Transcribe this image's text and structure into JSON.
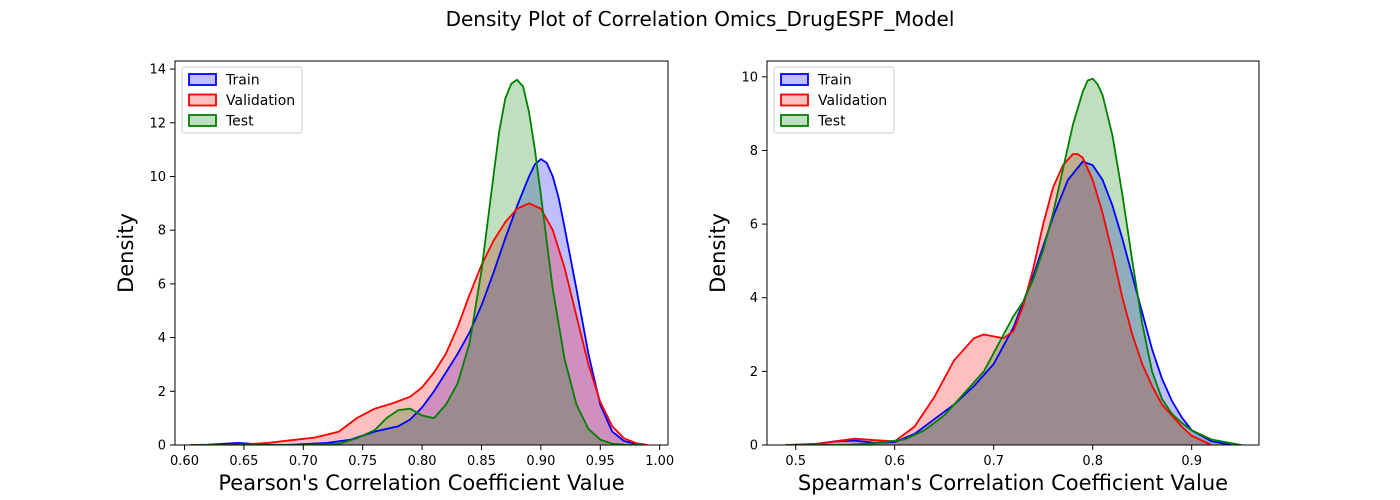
{
  "figure": {
    "title": "Density Plot of Correlation Omics_DrugESPF_Model"
  },
  "chart_data": [
    {
      "type": "area",
      "subtype": "kde-density",
      "title": "",
      "xlabel": "Pearson's Correlation Coefficient Value",
      "ylabel": "Density",
      "xlim": [
        0.592,
        1.007
      ],
      "ylim": [
        0,
        14.3
      ],
      "xticks": [
        0.6,
        0.65,
        0.7,
        0.75,
        0.8,
        0.85,
        0.9,
        0.95,
        1.0
      ],
      "xtick_labels": [
        "0.60",
        "0.65",
        "0.70",
        "0.75",
        "0.80",
        "0.85",
        "0.90",
        "0.95",
        "1.00"
      ],
      "yticks": [
        0,
        2,
        4,
        6,
        8,
        10,
        12,
        14
      ],
      "ytick_labels": [
        "0",
        "2",
        "4",
        "6",
        "8",
        "10",
        "12",
        "14"
      ],
      "grid": false,
      "legend_position": "top-left",
      "series": [
        {
          "name": "Train",
          "color": "#0000ff",
          "x": [
            0.605,
            0.62,
            0.635,
            0.645,
            0.655,
            0.67,
            0.685,
            0.7,
            0.72,
            0.74,
            0.75,
            0.76,
            0.77,
            0.78,
            0.79,
            0.8,
            0.81,
            0.82,
            0.83,
            0.84,
            0.85,
            0.86,
            0.87,
            0.88,
            0.89,
            0.895,
            0.9,
            0.905,
            0.91,
            0.915,
            0.92,
            0.93,
            0.94,
            0.95,
            0.96,
            0.97,
            0.98,
            0.99
          ],
          "y": [
            0.0,
            0.01,
            0.05,
            0.08,
            0.05,
            0.01,
            0.0,
            0.03,
            0.08,
            0.2,
            0.35,
            0.5,
            0.6,
            0.7,
            0.95,
            1.4,
            2.0,
            2.7,
            3.4,
            4.2,
            5.2,
            6.4,
            7.7,
            8.9,
            10.0,
            10.45,
            10.65,
            10.5,
            10.0,
            9.2,
            8.1,
            5.8,
            3.4,
            1.5,
            0.5,
            0.15,
            0.04,
            0.0
          ]
        },
        {
          "name": "Validation",
          "color": "#ff0000",
          "x": [
            0.605,
            0.63,
            0.65,
            0.67,
            0.69,
            0.71,
            0.73,
            0.745,
            0.76,
            0.775,
            0.79,
            0.8,
            0.81,
            0.82,
            0.83,
            0.84,
            0.85,
            0.86,
            0.87,
            0.88,
            0.89,
            0.9,
            0.91,
            0.92,
            0.93,
            0.94,
            0.95,
            0.96,
            0.97,
            0.98,
            0.99
          ],
          "y": [
            0.0,
            0.0,
            0.02,
            0.08,
            0.18,
            0.28,
            0.5,
            1.0,
            1.35,
            1.55,
            1.8,
            2.15,
            2.7,
            3.4,
            4.4,
            5.6,
            6.7,
            7.6,
            8.3,
            8.8,
            9.0,
            8.8,
            8.0,
            6.6,
            4.8,
            3.0,
            1.6,
            0.7,
            0.25,
            0.07,
            0.0
          ]
        },
        {
          "name": "Test",
          "color": "#008000",
          "x": [
            0.605,
            0.7,
            0.73,
            0.745,
            0.76,
            0.77,
            0.78,
            0.79,
            0.8,
            0.81,
            0.82,
            0.83,
            0.84,
            0.85,
            0.86,
            0.865,
            0.87,
            0.875,
            0.88,
            0.885,
            0.89,
            0.895,
            0.9,
            0.91,
            0.92,
            0.93,
            0.94,
            0.95,
            0.96,
            0.97,
            0.985
          ],
          "y": [
            0.0,
            0.0,
            0.05,
            0.25,
            0.55,
            1.0,
            1.3,
            1.35,
            1.1,
            1.0,
            1.5,
            2.3,
            3.8,
            6.5,
            10.0,
            11.7,
            12.9,
            13.45,
            13.6,
            13.35,
            12.4,
            11.0,
            9.3,
            5.8,
            3.2,
            1.5,
            0.6,
            0.2,
            0.05,
            0.01,
            0.0
          ]
        }
      ]
    },
    {
      "type": "area",
      "subtype": "kde-density",
      "title": "",
      "xlabel": "Spearman's Correlation Coefficient Value",
      "ylabel": "Density",
      "xlim": [
        0.471,
        0.968
      ],
      "ylim": [
        0,
        10.43
      ],
      "xticks": [
        0.5,
        0.6,
        0.7,
        0.8,
        0.9
      ],
      "xtick_labels": [
        "0.5",
        "0.6",
        "0.7",
        "0.8",
        "0.9"
      ],
      "yticks": [
        0,
        2,
        4,
        6,
        8,
        10
      ],
      "ytick_labels": [
        "0",
        "2",
        "4",
        "6",
        "8",
        "10"
      ],
      "grid": false,
      "legend_position": "top-left",
      "series": [
        {
          "name": "Train",
          "color": "#0000ff",
          "x": [
            0.49,
            0.52,
            0.54,
            0.56,
            0.58,
            0.6,
            0.62,
            0.64,
            0.66,
            0.68,
            0.7,
            0.72,
            0.74,
            0.76,
            0.775,
            0.79,
            0.8,
            0.81,
            0.82,
            0.83,
            0.84,
            0.85,
            0.86,
            0.87,
            0.88,
            0.89,
            0.9,
            0.92,
            0.94
          ],
          "y": [
            0.0,
            0.03,
            0.1,
            0.12,
            0.06,
            0.08,
            0.3,
            0.7,
            1.1,
            1.6,
            2.2,
            3.2,
            4.6,
            6.2,
            7.2,
            7.7,
            7.6,
            7.2,
            6.5,
            5.6,
            4.6,
            3.6,
            2.6,
            1.8,
            1.2,
            0.75,
            0.4,
            0.1,
            0.0
          ]
        },
        {
          "name": "Validation",
          "color": "#ff0000",
          "x": [
            0.49,
            0.52,
            0.54,
            0.56,
            0.58,
            0.6,
            0.62,
            0.64,
            0.66,
            0.68,
            0.69,
            0.7,
            0.71,
            0.72,
            0.73,
            0.74,
            0.75,
            0.76,
            0.77,
            0.78,
            0.785,
            0.79,
            0.8,
            0.81,
            0.82,
            0.83,
            0.84,
            0.85,
            0.86,
            0.87,
            0.88,
            0.89,
            0.9,
            0.92
          ],
          "y": [
            0.0,
            0.02,
            0.1,
            0.17,
            0.13,
            0.1,
            0.5,
            1.3,
            2.3,
            2.9,
            3.0,
            2.95,
            2.9,
            3.1,
            3.8,
            4.8,
            6.0,
            7.0,
            7.6,
            7.9,
            7.9,
            7.8,
            7.2,
            6.3,
            5.2,
            4.0,
            3.0,
            2.2,
            1.6,
            1.1,
            0.8,
            0.5,
            0.25,
            0.0
          ]
        },
        {
          "name": "Test",
          "color": "#008000",
          "x": [
            0.49,
            0.55,
            0.58,
            0.61,
            0.63,
            0.65,
            0.67,
            0.69,
            0.71,
            0.72,
            0.73,
            0.74,
            0.75,
            0.76,
            0.77,
            0.78,
            0.79,
            0.795,
            0.8,
            0.805,
            0.81,
            0.82,
            0.83,
            0.84,
            0.85,
            0.86,
            0.87,
            0.88,
            0.89,
            0.9,
            0.92,
            0.95
          ],
          "y": [
            0.0,
            0.0,
            0.05,
            0.15,
            0.4,
            0.8,
            1.4,
            2.0,
            3.0,
            3.5,
            3.9,
            4.5,
            5.3,
            6.3,
            7.5,
            8.7,
            9.6,
            9.9,
            9.95,
            9.8,
            9.5,
            8.4,
            6.8,
            5.0,
            3.3,
            2.0,
            1.25,
            0.85,
            0.6,
            0.4,
            0.15,
            0.0
          ]
        }
      ]
    }
  ]
}
